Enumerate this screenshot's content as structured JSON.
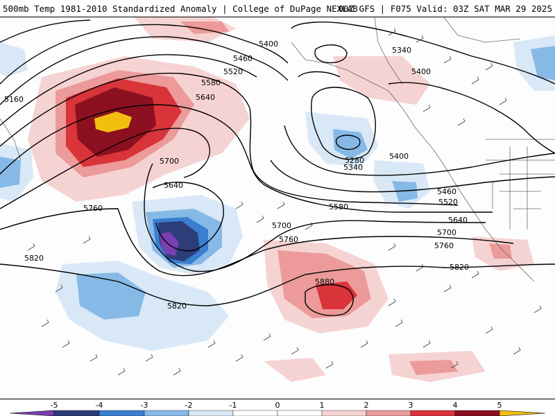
{
  "header": {
    "title_left": "500mb Temp 1981-2010 Standardized Anomaly | College of DuPage NEXLAB",
    "title_right": "00Z GFS | F075 Valid: 03Z SAT MAR 29 2025"
  },
  "contour_labels": [
    "5400",
    "5460",
    "5520",
    "5580",
    "5640",
    "5160",
    "5700",
    "5640",
    "5760",
    "5820",
    "5700",
    "5760",
    "5820",
    "5880",
    "5340",
    "5400",
    "5280",
    "5340",
    "5400",
    "5460",
    "5520",
    "5580",
    "5640",
    "5700",
    "5760",
    "5820"
  ],
  "legend": {
    "ticks": [
      "-5",
      "-4",
      "-3",
      "-2",
      "-1",
      "0",
      "1",
      "2",
      "3",
      "4",
      "5"
    ],
    "colors": [
      "#7a3fb0",
      "#2c3d7a",
      "#3a7fd0",
      "#86b9e6",
      "#d9e8f6",
      "#ffffff",
      "#f6d3d3",
      "#ec9a9a",
      "#d8343a",
      "#8c1020",
      "#f2bf10"
    ]
  }
}
